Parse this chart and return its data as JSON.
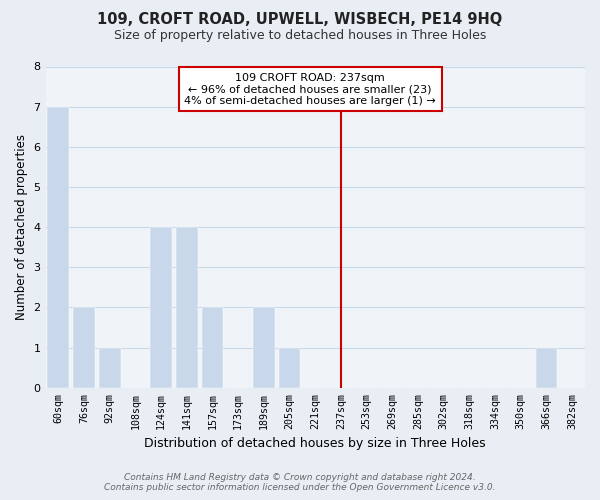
{
  "title": "109, CROFT ROAD, UPWELL, WISBECH, PE14 9HQ",
  "subtitle": "Size of property relative to detached houses in Three Holes",
  "xlabel": "Distribution of detached houses by size in Three Holes",
  "ylabel": "Number of detached properties",
  "bin_labels": [
    "60sqm",
    "76sqm",
    "92sqm",
    "108sqm",
    "124sqm",
    "141sqm",
    "157sqm",
    "173sqm",
    "189sqm",
    "205sqm",
    "221sqm",
    "237sqm",
    "253sqm",
    "269sqm",
    "285sqm",
    "302sqm",
    "318sqm",
    "334sqm",
    "350sqm",
    "366sqm",
    "382sqm"
  ],
  "bar_values": [
    7,
    2,
    1,
    0,
    4,
    4,
    2,
    0,
    2,
    1,
    0,
    0,
    0,
    0,
    0,
    0,
    0,
    0,
    0,
    1,
    0
  ],
  "bar_color": "#c8d8ea",
  "reference_line_x_label": "237sqm",
  "reference_line_color": "#cc0000",
  "ylim": [
    0,
    8
  ],
  "yticks": [
    0,
    1,
    2,
    3,
    4,
    5,
    6,
    7,
    8
  ],
  "annotation_title": "109 CROFT ROAD: 237sqm",
  "annotation_line1": "← 96% of detached houses are smaller (23)",
  "annotation_line2": "4% of semi-detached houses are larger (1) →",
  "footer_line1": "Contains HM Land Registry data © Crown copyright and database right 2024.",
  "footer_line2": "Contains public sector information licensed under the Open Government Licence v3.0.",
  "background_color": "#e8eef4",
  "plot_bg_color": "#f0f4f8",
  "grid_color": "#c8d8e8"
}
